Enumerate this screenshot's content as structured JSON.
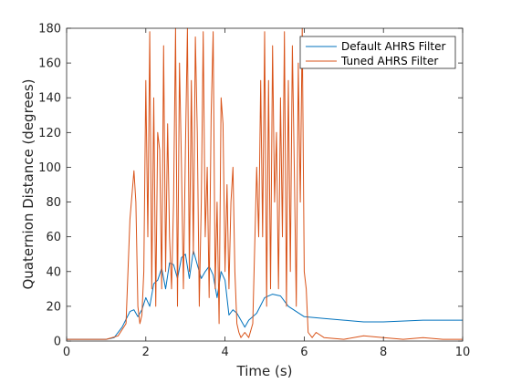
{
  "chart_data": {
    "type": "line",
    "xlabel": "Time (s)",
    "ylabel": "Quaternion Distance (degrees)",
    "xlim": [
      0,
      10
    ],
    "ylim": [
      0,
      180
    ],
    "xticks": [
      0,
      2,
      4,
      6,
      8,
      10
    ],
    "yticks": [
      0,
      20,
      40,
      60,
      80,
      100,
      120,
      140,
      160,
      180
    ],
    "grid": false,
    "legend_position": "top-right",
    "series": [
      {
        "name": "Default AHRS Filter",
        "color": "#0072BD",
        "x": [
          0,
          0.5,
          1.0,
          1.2,
          1.4,
          1.6,
          1.7,
          1.8,
          1.9,
          2.0,
          2.1,
          2.2,
          2.3,
          2.4,
          2.5,
          2.6,
          2.7,
          2.8,
          2.9,
          3.0,
          3.1,
          3.2,
          3.3,
          3.4,
          3.5,
          3.6,
          3.7,
          3.8,
          3.9,
          4.0,
          4.1,
          4.2,
          4.3,
          4.4,
          4.5,
          4.6,
          4.8,
          5.0,
          5.2,
          5.4,
          5.6,
          6.0,
          6.5,
          7.0,
          7.5,
          8.0,
          9.0,
          10.0
        ],
        "y": [
          1,
          1,
          1,
          2,
          8,
          17,
          18,
          14,
          18,
          25,
          20,
          33,
          35,
          42,
          30,
          45,
          44,
          36,
          48,
          50,
          36,
          52,
          44,
          36,
          40,
          43,
          38,
          25,
          40,
          35,
          15,
          18,
          16,
          12,
          8,
          12,
          16,
          25,
          27,
          26,
          20,
          14,
          13,
          12,
          11,
          11,
          12,
          12
        ]
      },
      {
        "name": "Tuned AHRS Filter",
        "color": "#D95319",
        "x": [
          0,
          0.5,
          1.0,
          1.3,
          1.5,
          1.6,
          1.7,
          1.75,
          1.8,
          1.85,
          1.9,
          1.95,
          2.0,
          2.05,
          2.1,
          2.15,
          2.2,
          2.25,
          2.3,
          2.35,
          2.4,
          2.45,
          2.5,
          2.55,
          2.6,
          2.65,
          2.7,
          2.75,
          2.8,
          2.85,
          2.9,
          2.95,
          3.0,
          3.05,
          3.1,
          3.15,
          3.2,
          3.25,
          3.3,
          3.35,
          3.4,
          3.45,
          3.5,
          3.55,
          3.6,
          3.65,
          3.7,
          3.75,
          3.8,
          3.85,
          3.9,
          3.95,
          4.0,
          4.05,
          4.1,
          4.15,
          4.2,
          4.25,
          4.3,
          4.35,
          4.4,
          4.5,
          4.6,
          4.7,
          4.8,
          4.85,
          4.9,
          4.95,
          5.0,
          5.05,
          5.1,
          5.15,
          5.2,
          5.25,
          5.3,
          5.35,
          5.4,
          5.45,
          5.5,
          5.55,
          5.6,
          5.65,
          5.7,
          5.75,
          5.8,
          5.85,
          5.9,
          5.95,
          6.0,
          6.05,
          6.1,
          6.2,
          6.3,
          6.5,
          7.0,
          7.5,
          8.0,
          8.5,
          9.0,
          9.5,
          10.0
        ],
        "y": [
          1,
          1,
          1,
          3,
          10,
          70,
          98,
          80,
          20,
          10,
          15,
          40,
          150,
          60,
          178,
          30,
          140,
          20,
          120,
          110,
          30,
          170,
          40,
          125,
          60,
          30,
          80,
          180,
          20,
          160,
          100,
          30,
          110,
          180,
          40,
          150,
          50,
          175,
          120,
          20,
          80,
          178,
          60,
          100,
          25,
          130,
          178,
          30,
          80,
          10,
          140,
          125,
          40,
          90,
          30,
          80,
          100,
          40,
          10,
          5,
          2,
          5,
          2,
          10,
          100,
          60,
          150,
          60,
          178,
          20,
          150,
          30,
          170,
          80,
          120,
          30,
          140,
          60,
          178,
          20,
          150,
          40,
          170,
          100,
          20,
          160,
          80,
          180,
          40,
          30,
          5,
          2,
          5,
          2,
          1,
          3,
          2,
          1,
          2,
          1,
          1
        ]
      }
    ]
  }
}
